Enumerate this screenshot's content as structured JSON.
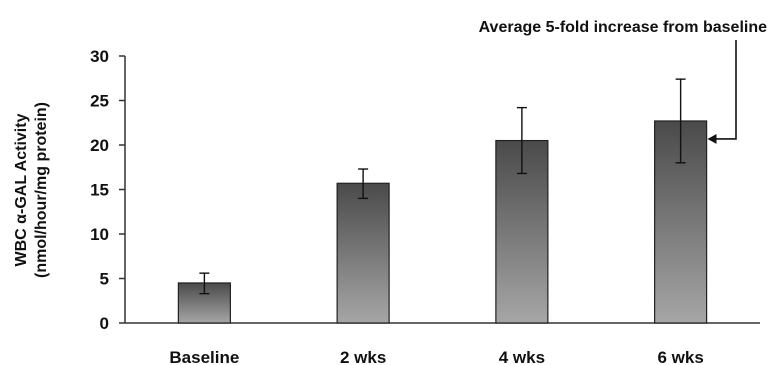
{
  "chart_data": {
    "type": "bar",
    "categories": [
      "Baseline",
      "2 wks",
      "4 wks",
      "6 wks"
    ],
    "values": [
      4.5,
      15.7,
      20.5,
      22.7
    ],
    "error_low": [
      3.3,
      14.0,
      16.8,
      18.0
    ],
    "error_high": [
      5.6,
      17.3,
      24.2,
      27.4
    ],
    "title": "",
    "xlabel": "",
    "ylabel": [
      "WBC α-GAL Activity",
      "(nmol/hour/mg protein)"
    ],
    "ylim": [
      0,
      30
    ],
    "yticks": [
      0,
      5,
      10,
      15,
      20,
      25,
      30
    ],
    "grid": false,
    "annotation": {
      "text": "Average 5-fold increase from baseline",
      "target_category": "6 wks"
    },
    "colors": {
      "bar_top": "#4a4a4a",
      "bar_bottom": "#a6a6a6",
      "bar_stroke": "#222222",
      "axis": "#333333"
    }
  }
}
